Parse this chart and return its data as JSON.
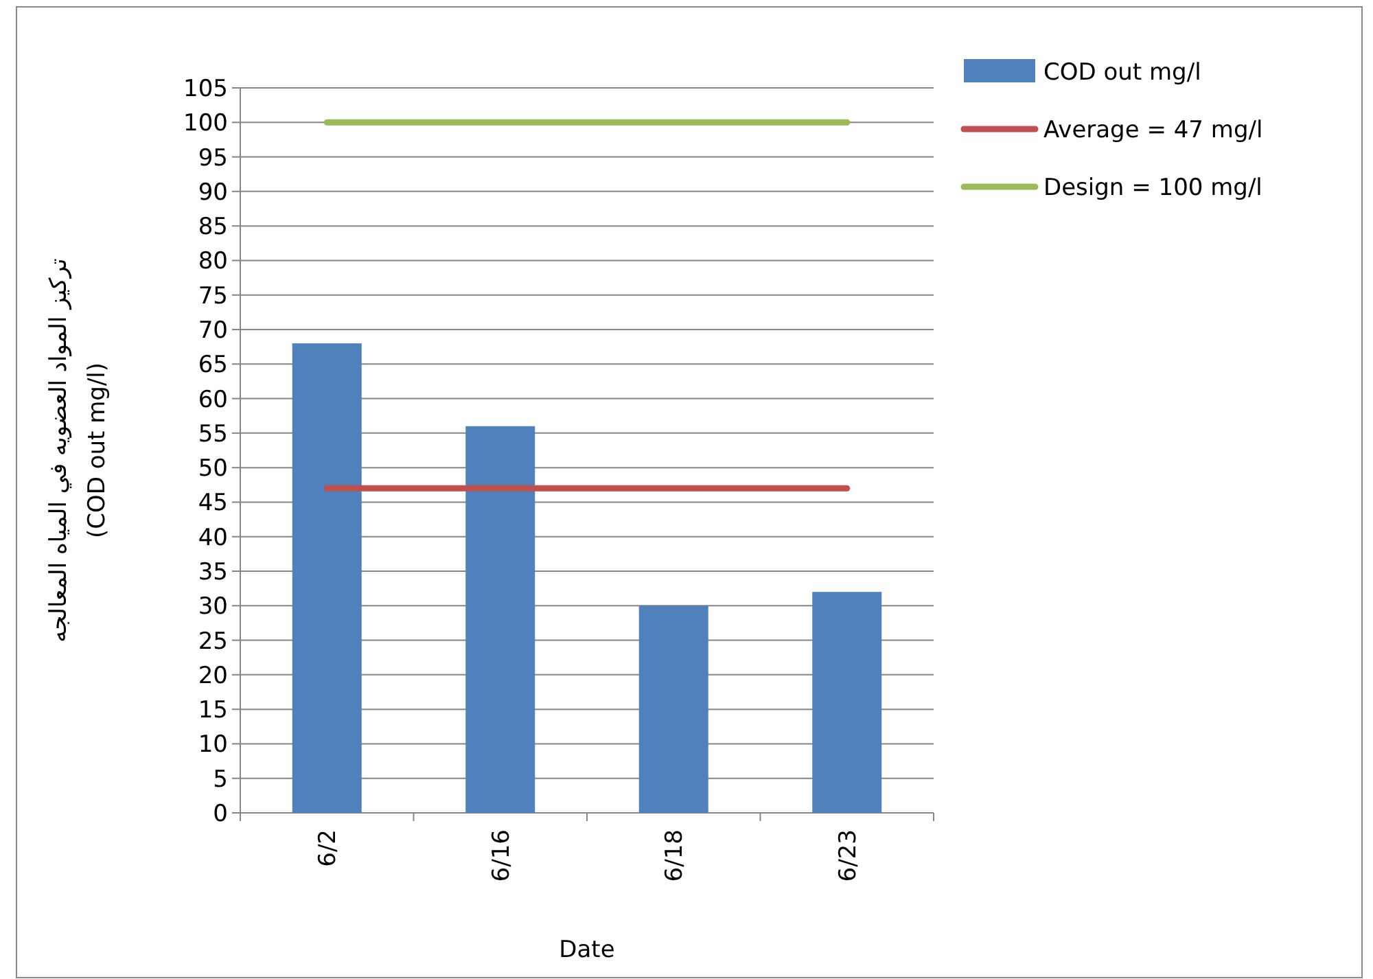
{
  "chart_data": {
    "type": "bar",
    "xlabel": "Date",
    "ylabel": [
      "تركيز المواد العضويه في المياه المعالجه",
      "(COD out mg/l)"
    ],
    "categories": [
      "6/2",
      "6/16",
      "6/18",
      "6/23"
    ],
    "series": [
      {
        "name": "COD out mg/l",
        "color": "#4f81bd",
        "values": [
          68,
          56,
          30,
          32
        ]
      },
      {
        "name": "Average = 47 mg/l",
        "type": "line",
        "color": "#c0504d",
        "values": [
          47,
          47,
          47,
          47
        ]
      },
      {
        "name": "Design = 100 mg/l",
        "type": "line",
        "color": "#9bbb59",
        "values": [
          100,
          100,
          100,
          100
        ]
      }
    ],
    "ylim": [
      0,
      105
    ],
    "yticks": [
      0,
      5,
      10,
      15,
      20,
      25,
      30,
      35,
      40,
      45,
      50,
      55,
      60,
      65,
      70,
      75,
      80,
      85,
      90,
      95,
      100,
      105
    ],
    "grid": "y",
    "legend": "top right",
    "marker": "none",
    "line_style": "solid"
  }
}
